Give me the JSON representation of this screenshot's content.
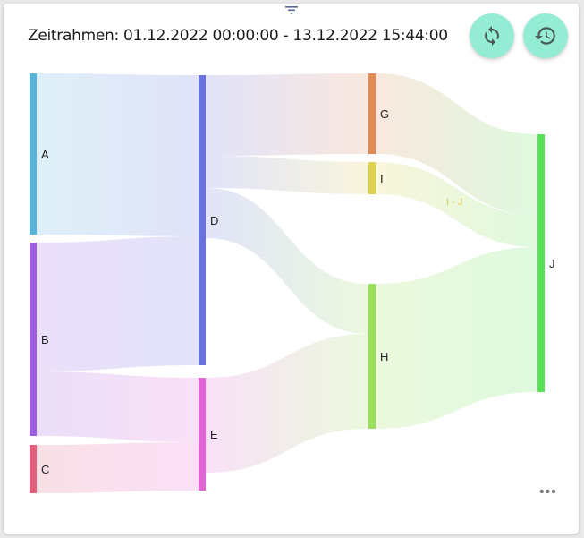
{
  "header": {
    "title": "Zeitrahmen: 01.12.2022 00:00:00 - 13.12.2022 15:44:00",
    "refresh_icon": "refresh-icon",
    "history_icon": "history-icon",
    "filter_icon": "filter-icon",
    "more_icon": "more-horizontal-icon",
    "more_label": "•••"
  },
  "chart_data": {
    "type": "sankey",
    "nodes": [
      {
        "id": "A",
        "label": "A",
        "color": "#5ab4d6"
      },
      {
        "id": "B",
        "label": "B",
        "color": "#9b5fe0"
      },
      {
        "id": "C",
        "label": "C",
        "color": "#e0607e"
      },
      {
        "id": "D",
        "label": "D",
        "color": "#6a72e0"
      },
      {
        "id": "E",
        "label": "E",
        "color": "#e066d4"
      },
      {
        "id": "G",
        "label": "G",
        "color": "#e08a5a"
      },
      {
        "id": "I",
        "label": "I",
        "color": "#e0d050"
      },
      {
        "id": "H",
        "label": "H",
        "color": "#9be05a"
      },
      {
        "id": "J",
        "label": "J",
        "color": "#5ae05a"
      }
    ],
    "links": [
      {
        "source": "A",
        "target": "D",
        "value": 180
      },
      {
        "source": "B",
        "target": "D",
        "value": 144
      },
      {
        "source": "B",
        "target": "E",
        "value": 72
      },
      {
        "source": "C",
        "target": "E",
        "value": 54
      },
      {
        "source": "D",
        "target": "G",
        "value": 90
      },
      {
        "source": "D",
        "target": "I",
        "value": 36
      },
      {
        "source": "D",
        "target": "H",
        "value": 56
      },
      {
        "source": "E",
        "target": "H",
        "value": 106
      },
      {
        "source": "G",
        "target": "J",
        "value": 90
      },
      {
        "source": "I",
        "target": "J",
        "value": 36
      },
      {
        "source": "H",
        "target": "J",
        "value": 162
      }
    ],
    "hover_label": "I - J"
  }
}
